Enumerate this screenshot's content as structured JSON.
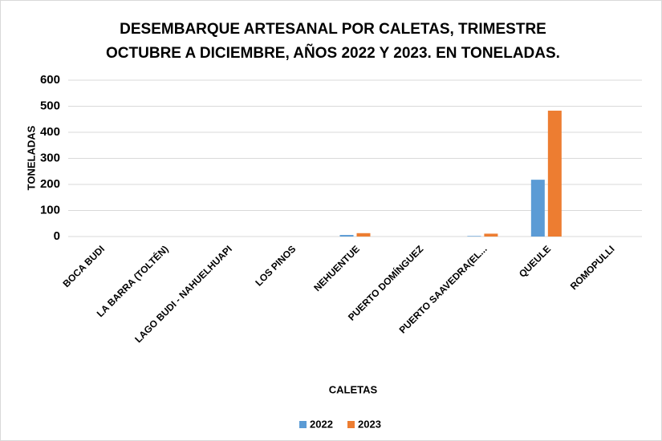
{
  "chart_data": {
    "type": "bar",
    "title": [
      "DESEMBARQUE ARTESANAL POR CALETAS, TRIMESTRE",
      "OCTUBRE A DICIEMBRE, AÑOS 2022 Y 2023. EN TONELADAS."
    ],
    "x_label": "CALETAS",
    "y_label": "TONELADAS",
    "categories": [
      "BOCA BUDI",
      "LA BARRA (TOLTÉN)",
      "LAGO BUDI - NAHUELHUAPI",
      "LOS PINOS",
      "NEHUENTUE",
      "PUERTO DOMÍNGUEZ",
      "PUERTO SAAVEDRA(EL...",
      "QUEULE",
      "ROMOPULLI"
    ],
    "series": [
      {
        "name": "2022",
        "color": "#5b9bd5",
        "values": [
          0,
          0,
          0,
          0,
          6,
          0,
          2,
          218,
          0
        ]
      },
      {
        "name": "2023",
        "color": "#ed7d31",
        "values": [
          0,
          0,
          0,
          0,
          13,
          0,
          11,
          483,
          0
        ]
      }
    ],
    "ylim": [
      0,
      600
    ],
    "yticks": [
      0,
      100,
      200,
      300,
      400,
      500,
      600
    ],
    "grid": true,
    "legend": "bottom"
  }
}
